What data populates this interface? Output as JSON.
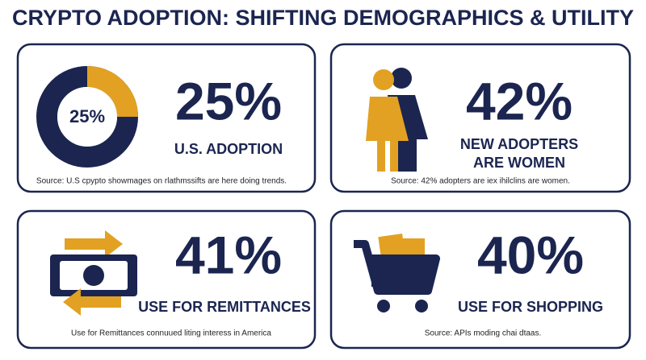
{
  "title": "CRYPTO ADOPTION: SHIFTING DEMOGRAPHICS & UTILITY",
  "cards": [
    {
      "value": 25,
      "stat": "25%",
      "label": [
        "U.S. ADOPTION"
      ],
      "source": "Source: U.S cpypto showmages on rlathmssifts are here doing trends."
    },
    {
      "stat": "42%",
      "label": [
        "NEW ADOPTERS",
        "ARE WOMEN"
      ],
      "source": "Source: 42% adopters are iex ihilclins are women."
    },
    {
      "stat": "41%",
      "label": [
        "USE FOR REMITTANCES"
      ],
      "source": "Use for Remittances connuued liting interess in America"
    },
    {
      "stat": "40%",
      "label": [
        "USE FOR SHOPPING"
      ],
      "source": "Source: APIs moding chai dtaas."
    }
  ]
}
